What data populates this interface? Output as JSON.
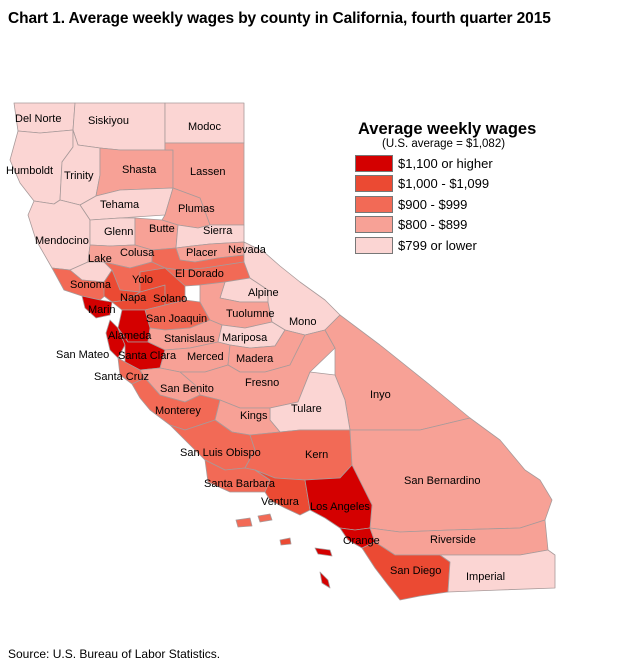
{
  "title": "Chart 1. Average weekly wages by county in California, fourth quarter 2015",
  "source": "Source: U.S. Bureau of Labor Statistics.",
  "legend": {
    "title": "Average weekly wages",
    "subtitle": "(U.S. average = $1,082)",
    "items": [
      {
        "label": "$1,100 or higher",
        "color": "#d40000"
      },
      {
        "label": "$1,000 - $1,099",
        "color": "#eb4a33"
      },
      {
        "label": "$900 - $999",
        "color": "#f26a56"
      },
      {
        "label": "$800 - $899",
        "color": "#f7a196"
      },
      {
        "label": "$799 or lower",
        "color": "#fbd5d3"
      }
    ]
  },
  "counties": {
    "del_norte": {
      "name": "Del Norte",
      "class": "$799 or lower"
    },
    "siskiyou": {
      "name": "Siskiyou",
      "class": "$799 or lower"
    },
    "modoc": {
      "name": "Modoc",
      "class": "$799 or lower"
    },
    "humboldt": {
      "name": "Humboldt",
      "class": "$799 or lower"
    },
    "trinity": {
      "name": "Trinity",
      "class": "$799 or lower"
    },
    "shasta": {
      "name": "Shasta",
      "class": "$800 - $899"
    },
    "lassen": {
      "name": "Lassen",
      "class": "$800 - $899"
    },
    "tehama": {
      "name": "Tehama",
      "class": "$799 or lower"
    },
    "plumas": {
      "name": "Plumas",
      "class": "$800 - $899"
    },
    "mendocino": {
      "name": "Mendocino",
      "class": "$799 or lower"
    },
    "glenn": {
      "name": "Glenn",
      "class": "$799 or lower"
    },
    "butte": {
      "name": "Butte",
      "class": "$800 - $899"
    },
    "sierra": {
      "name": "Sierra",
      "class": "$799 or lower"
    },
    "nevada": {
      "name": "Nevada",
      "class": "$800 - $899"
    },
    "colusa": {
      "name": "Colusa",
      "class": "$800 - $899"
    },
    "lake": {
      "name": "Lake",
      "class": "$799 or lower"
    },
    "placer": {
      "name": "Placer",
      "class": "$900 - $999"
    },
    "yolo": {
      "name": "Yolo",
      "class": "$900 - $999"
    },
    "el_dorado": {
      "name": "El Dorado",
      "class": "$900 - $999"
    },
    "sonoma": {
      "name": "Sonoma",
      "class": "$900 - $999"
    },
    "napa": {
      "name": "Napa",
      "class": "$1,000 - $1,099"
    },
    "solano": {
      "name": "Solano",
      "class": "$1,000 - $1,099"
    },
    "sacramento": {
      "name": "",
      "class": "$1,000 - $1,099"
    },
    "alpine": {
      "name": "Alpine",
      "class": "$799 or lower"
    },
    "marin": {
      "name": "Marin",
      "class": "$1,100 or higher"
    },
    "san_joaquin": {
      "name": "San Joaquin",
      "class": "$900 - $999"
    },
    "tuolumne": {
      "name": "Tuolumne",
      "class": "$800 - $899"
    },
    "mono": {
      "name": "Mono",
      "class": "$799 or lower"
    },
    "alameda": {
      "name": "Alameda",
      "class": "$1,100 or higher"
    },
    "stanislaus": {
      "name": "Stanislaus",
      "class": "$800 - $899"
    },
    "mariposa": {
      "name": "Mariposa",
      "class": "$799 or lower"
    },
    "san_mateo": {
      "name": "San Mateo",
      "class": "$1,100 or higher"
    },
    "santa_clara": {
      "name": "Santa Clara",
      "class": "$1,100 or higher"
    },
    "merced": {
      "name": "Merced",
      "class": "$800 - $899"
    },
    "madera": {
      "name": "Madera",
      "class": "$800 - $899"
    },
    "santa_cruz": {
      "name": "Santa Cruz",
      "class": "$900 - $999"
    },
    "fresno": {
      "name": "Fresno",
      "class": "$800 - $899"
    },
    "san_benito": {
      "name": "San Benito",
      "class": "$800 - $899"
    },
    "inyo": {
      "name": "Inyo",
      "class": "$800 - $899"
    },
    "monterey": {
      "name": "Monterey",
      "class": "$900 - $999"
    },
    "tulare": {
      "name": "Tulare",
      "class": "$799 or lower"
    },
    "kings": {
      "name": "Kings",
      "class": "$800 - $899"
    },
    "san_luis_obispo": {
      "name": "San Luis Obispo",
      "class": "$900 - $999"
    },
    "kern": {
      "name": "Kern",
      "class": "$900 - $999"
    },
    "santa_barbara": {
      "name": "Santa Barbara",
      "class": "$900 - $999"
    },
    "san_bernardino": {
      "name": "San Bernardino",
      "class": "$800 - $899"
    },
    "ventura": {
      "name": "Ventura",
      "class": "$1,000 - $1,099"
    },
    "los_angeles": {
      "name": "Los Angeles",
      "class": "$1,100 or higher"
    },
    "orange": {
      "name": "Orange",
      "class": "$1,100 or higher"
    },
    "riverside": {
      "name": "Riverside",
      "class": "$800 - $899"
    },
    "san_diego": {
      "name": "San Diego",
      "class": "$1,000 - $1,099"
    },
    "imperial": {
      "name": "Imperial",
      "class": "$799 or lower"
    }
  }
}
